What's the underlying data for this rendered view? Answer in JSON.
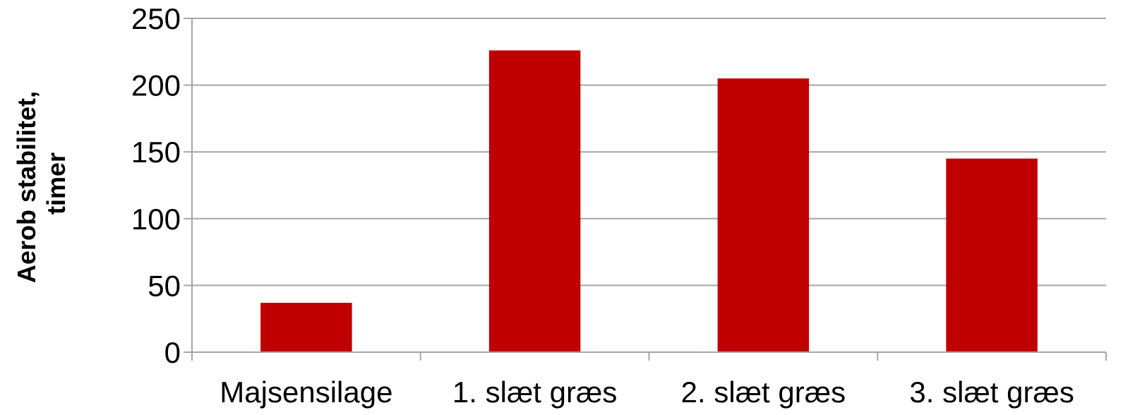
{
  "chart_data": {
    "type": "bar",
    "title": "",
    "xlabel": "",
    "ylabel_lines": [
      "Aerob stabilitet,",
      "timer"
    ],
    "categories": [
      "Majsensilage",
      "1. slæt græs",
      "2. slæt græs",
      "3. slæt græs"
    ],
    "series": [
      {
        "values": [
          37,
          226,
          205,
          145
        ],
        "color": "#C00000"
      }
    ],
    "ylim": [
      0,
      250
    ],
    "yticks": [
      "0",
      "50",
      "100",
      "150",
      "200",
      "250"
    ],
    "grid": true,
    "gridline_color": "#A6A6A6",
    "axis_color": "#A6A6A6"
  }
}
